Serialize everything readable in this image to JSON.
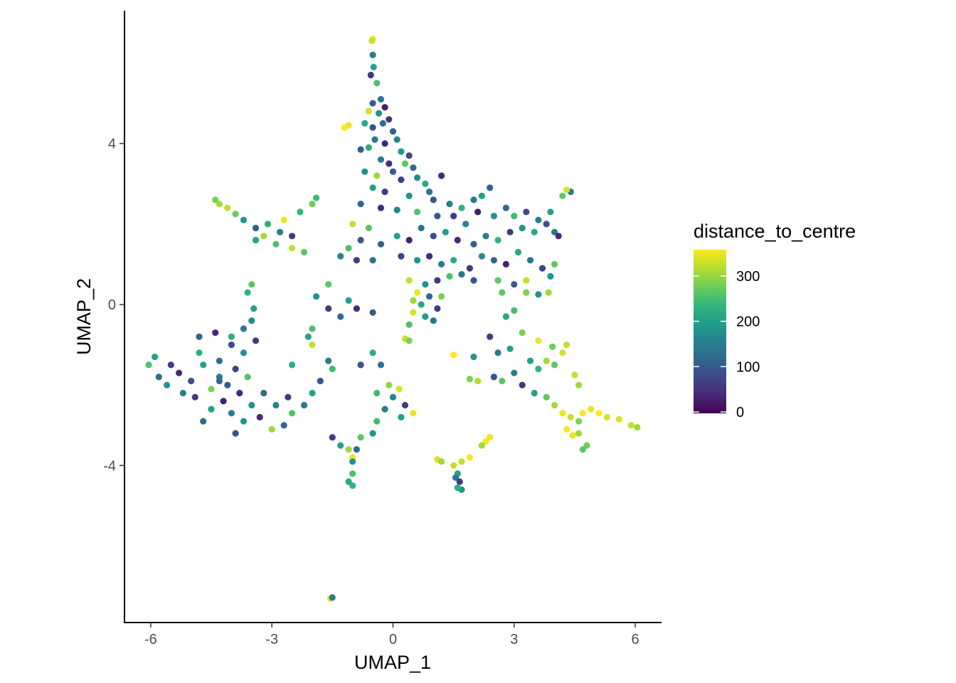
{
  "chart_data": {
    "type": "scatter",
    "title": "",
    "xlabel": "UMAP_1",
    "ylabel": "UMAP_2",
    "xlim": [
      -6.65,
      6.65
    ],
    "ylim": [
      -7.9,
      7.3
    ],
    "x_ticks": [
      -6,
      -3,
      0,
      3,
      6
    ],
    "x_tick_labels": [
      "-6",
      "-3",
      "0",
      "3",
      "6"
    ],
    "y_ticks": [
      -4,
      0,
      4
    ],
    "y_tick_labels": [
      "-4",
      "0",
      "4"
    ],
    "grid": false,
    "legend": {
      "title": "distance_to_centre",
      "placement": "right",
      "type": "colorbar",
      "range": [
        0,
        350
      ],
      "ticks": [
        0,
        100,
        200,
        300
      ],
      "tick_labels": [
        "0",
        "100",
        "200",
        "300"
      ],
      "palette": "viridis",
      "colors": [
        "#440154",
        "#3b528b",
        "#21918c",
        "#5ec962",
        "#fde725"
      ]
    },
    "point_color_stops": [
      "#440154",
      "#482878",
      "#3e4989",
      "#31688e",
      "#26828e",
      "#1f9e89",
      "#35b779",
      "#6ece58",
      "#b5de2b",
      "#fde725"
    ],
    "points": [
      [
        -0.5,
        6.6,
        350
      ],
      [
        -0.52,
        6.55,
        320
      ],
      [
        -0.5,
        6.2,
        150
      ],
      [
        -0.48,
        5.9,
        200
      ],
      [
        -0.55,
        5.7,
        60
      ],
      [
        -0.4,
        5.5,
        250
      ],
      [
        -0.3,
        5.1,
        140
      ],
      [
        -0.5,
        5.0,
        100
      ],
      [
        -0.2,
        4.9,
        30
      ],
      [
        -0.6,
        4.8,
        330
      ],
      [
        -0.35,
        4.75,
        180
      ],
      [
        -0.1,
        4.6,
        60
      ],
      [
        -0.25,
        4.5,
        120
      ],
      [
        -0.5,
        4.4,
        90
      ],
      [
        -0.7,
        4.5,
        210
      ],
      [
        -1.2,
        4.4,
        350
      ],
      [
        -1.1,
        4.45,
        340
      ],
      [
        0.0,
        4.3,
        110
      ],
      [
        0.1,
        4.1,
        160
      ],
      [
        -0.2,
        4.0,
        40
      ],
      [
        -0.45,
        4.1,
        140
      ],
      [
        -0.6,
        3.9,
        220
      ],
      [
        -0.8,
        3.85,
        100
      ],
      [
        0.2,
        3.8,
        190
      ],
      [
        0.4,
        3.7,
        80
      ],
      [
        -0.3,
        3.6,
        150
      ],
      [
        -0.1,
        3.5,
        50
      ],
      [
        0.3,
        3.5,
        260
      ],
      [
        0.5,
        3.4,
        120
      ],
      [
        -0.7,
        3.3,
        180
      ],
      [
        0.0,
        3.3,
        100
      ],
      [
        -0.4,
        3.2,
        300
      ],
      [
        0.2,
        3.1,
        70
      ],
      [
        0.6,
        3.15,
        170
      ],
      [
        0.8,
        3.0,
        210
      ],
      [
        1.2,
        3.2,
        40
      ],
      [
        0.9,
        2.8,
        130
      ],
      [
        -0.5,
        2.9,
        200
      ],
      [
        -0.2,
        2.8,
        60
      ],
      [
        0.4,
        2.7,
        180
      ],
      [
        1.0,
        2.6,
        90
      ],
      [
        1.4,
        2.5,
        150
      ],
      [
        1.7,
        2.4,
        230
      ],
      [
        -0.8,
        2.5,
        120
      ],
      [
        -0.3,
        2.4,
        40
      ],
      [
        0.1,
        2.35,
        160
      ],
      [
        0.6,
        2.3,
        250
      ],
      [
        1.1,
        2.2,
        100
      ],
      [
        1.5,
        2.2,
        60
      ],
      [
        2.0,
        2.6,
        140
      ],
      [
        2.2,
        2.7,
        200
      ],
      [
        2.4,
        2.9,
        110
      ],
      [
        2.1,
        2.3,
        30
      ],
      [
        2.5,
        2.2,
        180
      ],
      [
        1.8,
        2.0,
        160
      ],
      [
        2.8,
        2.4,
        120
      ],
      [
        3.0,
        2.2,
        240
      ],
      [
        3.3,
        2.3,
        80
      ],
      [
        3.6,
        2.1,
        150
      ],
      [
        3.9,
        2.3,
        200
      ],
      [
        4.2,
        2.7,
        260
      ],
      [
        4.4,
        2.8,
        150
      ],
      [
        4.3,
        2.85,
        330
      ],
      [
        3.8,
        2.0,
        90
      ],
      [
        3.5,
        1.8,
        210
      ],
      [
        4.0,
        1.8,
        140
      ],
      [
        4.1,
        1.7,
        40
      ],
      [
        3.2,
        1.9,
        180
      ],
      [
        2.9,
        1.8,
        60
      ],
      [
        2.6,
        1.6,
        230
      ],
      [
        2.3,
        1.7,
        150
      ],
      [
        2.0,
        1.5,
        100
      ],
      [
        1.6,
        1.6,
        40
      ],
      [
        1.3,
        1.8,
        190
      ],
      [
        1.0,
        1.7,
        80
      ],
      [
        0.7,
        1.9,
        140
      ],
      [
        0.4,
        1.6,
        30
      ],
      [
        0.1,
        1.7,
        200
      ],
      [
        -0.3,
        1.5,
        110
      ],
      [
        -0.6,
        1.9,
        260
      ],
      [
        -1.0,
        2.0,
        320
      ],
      [
        -0.8,
        1.6,
        100
      ],
      [
        -1.1,
        1.4,
        250
      ],
      [
        -1.3,
        1.2,
        160
      ],
      [
        -0.9,
        1.1,
        60
      ],
      [
        -0.5,
        1.1,
        130
      ],
      [
        0.2,
        1.2,
        70
      ],
      [
        0.6,
        1.1,
        180
      ],
      [
        0.9,
        1.2,
        40
      ],
      [
        1.2,
        1.0,
        150
      ],
      [
        1.5,
        1.1,
        220
      ],
      [
        1.9,
        0.9,
        60
      ],
      [
        2.2,
        1.2,
        170
      ],
      [
        2.5,
        1.1,
        110
      ],
      [
        2.8,
        1.0,
        30
      ],
      [
        3.1,
        1.3,
        210
      ],
      [
        3.4,
        1.1,
        140
      ],
      [
        3.7,
        0.9,
        70
      ],
      [
        4.0,
        1.0,
        260
      ],
      [
        3.9,
        0.7,
        180
      ],
      [
        3.3,
        0.6,
        320
      ],
      [
        3.0,
        0.5,
        100
      ],
      [
        2.6,
        0.6,
        260
      ],
      [
        2.0,
        0.6,
        90
      ],
      [
        1.7,
        0.75,
        140
      ],
      [
        1.4,
        0.7,
        250
      ],
      [
        1.1,
        0.6,
        60
      ],
      [
        0.8,
        0.5,
        180
      ],
      [
        0.4,
        0.6,
        320
      ],
      [
        0.6,
        0.3,
        340
      ],
      [
        0.5,
        0.1,
        300
      ],
      [
        0.7,
        0.0,
        210
      ],
      [
        0.9,
        0.2,
        120
      ],
      [
        1.1,
        -0.1,
        60
      ],
      [
        1.2,
        0.2,
        280
      ],
      [
        0.5,
        -0.2,
        330
      ],
      [
        0.8,
        -0.3,
        190
      ],
      [
        1.0,
        -0.4,
        140
      ],
      [
        0.4,
        -0.5,
        250
      ],
      [
        0.3,
        -0.85,
        320
      ],
      [
        0.4,
        -0.9,
        280
      ],
      [
        -0.5,
        -0.2,
        100
      ],
      [
        -0.9,
        -0.1,
        40
      ],
      [
        -1.1,
        0.1,
        200
      ],
      [
        -1.3,
        -0.3,
        120
      ],
      [
        -1.6,
        -0.1,
        60
      ],
      [
        -1.9,
        0.2,
        180
      ],
      [
        -1.6,
        0.5,
        260
      ],
      [
        -2.0,
        -0.6,
        250
      ],
      [
        -2.1,
        -0.8,
        200
      ],
      [
        -2.0,
        -1.0,
        320
      ],
      [
        -1.6,
        -1.4,
        150
      ],
      [
        -1.5,
        -1.6,
        240
      ],
      [
        -1.8,
        -1.9,
        90
      ],
      [
        -2.0,
        -2.2,
        200
      ],
      [
        -2.2,
        -2.5,
        140
      ],
      [
        -2.6,
        -2.3,
        60
      ],
      [
        -2.9,
        -2.5,
        160
      ],
      [
        -2.5,
        -2.7,
        250
      ],
      [
        -2.7,
        -3.0,
        120
      ],
      [
        -3.0,
        -3.1,
        300
      ],
      [
        -3.3,
        -2.8,
        40
      ],
      [
        -3.7,
        -2.9,
        180
      ],
      [
        -3.9,
        -3.2,
        90
      ],
      [
        -4.0,
        -2.7,
        150
      ],
      [
        -4.2,
        -2.4,
        30
      ],
      [
        -4.5,
        -2.6,
        200
      ],
      [
        -4.7,
        -2.9,
        120
      ],
      [
        -4.9,
        -2.3,
        60
      ],
      [
        -4.5,
        -2.1,
        280
      ],
      [
        -4.1,
        -2.0,
        100
      ],
      [
        -3.8,
        -2.2,
        40
      ],
      [
        -3.5,
        -2.5,
        180
      ],
      [
        -3.2,
        -2.2,
        120
      ],
      [
        -3.6,
        -1.8,
        250
      ],
      [
        -3.9,
        -1.6,
        70
      ],
      [
        -4.3,
        -1.8,
        150
      ],
      [
        -4.7,
        -1.5,
        200
      ],
      [
        -5.0,
        -1.9,
        90
      ],
      [
        -5.3,
        -1.7,
        40
      ],
      [
        -5.6,
        -2.0,
        180
      ],
      [
        -5.8,
        -1.8,
        120
      ],
      [
        -6.05,
        -1.5,
        250
      ],
      [
        -5.9,
        -1.3,
        200
      ],
      [
        -5.5,
        -1.5,
        60
      ],
      [
        -5.2,
        -2.2,
        150
      ],
      [
        -4.8,
        -1.2,
        220
      ],
      [
        -4.3,
        -1.4,
        130
      ],
      [
        -4.0,
        -1.0,
        80
      ],
      [
        -3.7,
        -1.2,
        180
      ],
      [
        -3.4,
        -0.9,
        60
      ],
      [
        -3.7,
        -0.6,
        140
      ],
      [
        -4.0,
        -0.8,
        220
      ],
      [
        -4.4,
        -0.7,
        40
      ],
      [
        -4.8,
        -0.8,
        110
      ],
      [
        -3.5,
        -0.4,
        170
      ],
      [
        -4.4,
        2.6,
        280
      ],
      [
        -4.3,
        2.5,
        300
      ],
      [
        -4.1,
        2.4,
        320
      ],
      [
        -3.9,
        2.25,
        270
      ],
      [
        -3.7,
        2.1,
        180
      ],
      [
        -3.4,
        1.9,
        100
      ],
      [
        -3.1,
        2.0,
        220
      ],
      [
        -3.2,
        1.7,
        300
      ],
      [
        -2.8,
        1.8,
        150
      ],
      [
        -2.5,
        1.7,
        60
      ],
      [
        -2.9,
        1.5,
        250
      ],
      [
        -2.5,
        1.4,
        320
      ],
      [
        -2.2,
        1.3,
        260
      ],
      [
        -3.4,
        1.6,
        200
      ],
      [
        -2.7,
        2.1,
        340
      ],
      [
        -2.3,
        2.3,
        230
      ],
      [
        -2.0,
        2.5,
        270
      ],
      [
        -1.9,
        2.65,
        240
      ],
      [
        -3.5,
        0.5,
        260
      ],
      [
        -3.6,
        0.3,
        230
      ],
      [
        -3.45,
        -0.1,
        200
      ],
      [
        -0.8,
        -1.5,
        90
      ],
      [
        -0.5,
        -1.2,
        220
      ],
      [
        -0.3,
        -1.5,
        130
      ],
      [
        -0.4,
        -2.2,
        240
      ],
      [
        -0.1,
        -2.0,
        290
      ],
      [
        0.0,
        -2.3,
        160
      ],
      [
        0.3,
        -2.5,
        60
      ],
      [
        0.2,
        -2.8,
        200
      ],
      [
        0.5,
        -2.7,
        340
      ],
      [
        0.15,
        -2.1,
        330
      ],
      [
        -0.2,
        -2.6,
        150
      ],
      [
        -0.4,
        -2.9,
        240
      ],
      [
        -0.5,
        -3.2,
        180
      ],
      [
        -0.8,
        -3.3,
        260
      ],
      [
        -0.9,
        -3.6,
        120
      ],
      [
        -1.1,
        -3.6,
        300
      ],
      [
        -1.0,
        -3.8,
        340
      ],
      [
        -1.0,
        -3.9,
        180
      ],
      [
        -1.5,
        -3.3,
        60
      ],
      [
        -1.3,
        -3.5,
        200
      ],
      [
        -1.0,
        -4.2,
        250
      ],
      [
        -1.0,
        -4.5,
        230
      ],
      [
        -1.1,
        -4.4,
        210
      ],
      [
        -1.55,
        -7.3,
        330
      ],
      [
        -1.5,
        -7.28,
        150
      ],
      [
        1.1,
        -3.85,
        330
      ],
      [
        1.2,
        -3.9,
        300
      ],
      [
        1.5,
        -4.0,
        320
      ],
      [
        1.7,
        -3.9,
        320
      ],
      [
        1.6,
        -4.2,
        200
      ],
      [
        1.55,
        -4.3,
        140
      ],
      [
        1.65,
        -4.4,
        60
      ],
      [
        1.7,
        -4.6,
        180
      ],
      [
        1.6,
        -4.55,
        220
      ],
      [
        1.9,
        -3.8,
        350
      ],
      [
        2.3,
        -3.4,
        350
      ],
      [
        2.2,
        -3.5,
        300
      ],
      [
        2.4,
        -3.3,
        340
      ],
      [
        1.5,
        -1.25,
        350
      ],
      [
        2.0,
        -1.3,
        180
      ],
      [
        2.5,
        -1.8,
        90
      ],
      [
        2.7,
        -1.9,
        260
      ],
      [
        3.0,
        -1.7,
        150
      ],
      [
        3.2,
        -2.0,
        60
      ],
      [
        3.5,
        -2.2,
        200
      ],
      [
        3.8,
        -2.3,
        260
      ],
      [
        4.0,
        -2.5,
        300
      ],
      [
        4.2,
        -2.7,
        340
      ],
      [
        4.4,
        -2.8,
        320
      ],
      [
        4.6,
        -2.9,
        280
      ],
      [
        4.7,
        -2.7,
        350
      ],
      [
        4.9,
        -2.6,
        340
      ],
      [
        5.1,
        -2.7,
        350
      ],
      [
        5.3,
        -2.8,
        330
      ],
      [
        5.6,
        -2.85,
        330
      ],
      [
        5.9,
        -3.0,
        320
      ],
      [
        6.05,
        -3.05,
        300
      ],
      [
        4.3,
        -3.1,
        350
      ],
      [
        4.45,
        -3.25,
        340
      ],
      [
        4.6,
        -3.2,
        300
      ],
      [
        4.8,
        -3.5,
        270
      ],
      [
        4.7,
        -3.6,
        260
      ],
      [
        3.4,
        -1.4,
        200
      ],
      [
        3.6,
        -1.6,
        230
      ],
      [
        3.8,
        -1.4,
        300
      ],
      [
        4.0,
        -1.5,
        260
      ],
      [
        4.2,
        -1.2,
        330
      ],
      [
        4.3,
        -1.0,
        320
      ],
      [
        3.95,
        -1.05,
        270
      ],
      [
        3.6,
        -0.9,
        340
      ],
      [
        3.2,
        -0.7,
        280
      ],
      [
        2.9,
        -1.1,
        200
      ],
      [
        2.6,
        -1.2,
        140
      ],
      [
        2.4,
        -0.8,
        60
      ],
      [
        2.8,
        -0.3,
        210
      ],
      [
        3.0,
        -0.15,
        240
      ],
      [
        3.3,
        0.3,
        280
      ],
      [
        3.6,
        0.25,
        180
      ],
      [
        3.85,
        0.3,
        300
      ],
      [
        2.7,
        0.3,
        260
      ],
      [
        4.5,
        -1.75,
        320
      ],
      [
        4.6,
        -2.0,
        300
      ],
      [
        2.1,
        -1.9,
        310
      ],
      [
        1.9,
        -1.85,
        280
      ],
      [
        -4.3,
        -1.9,
        120
      ],
      [
        -2.5,
        -1.5,
        220
      ]
    ]
  }
}
